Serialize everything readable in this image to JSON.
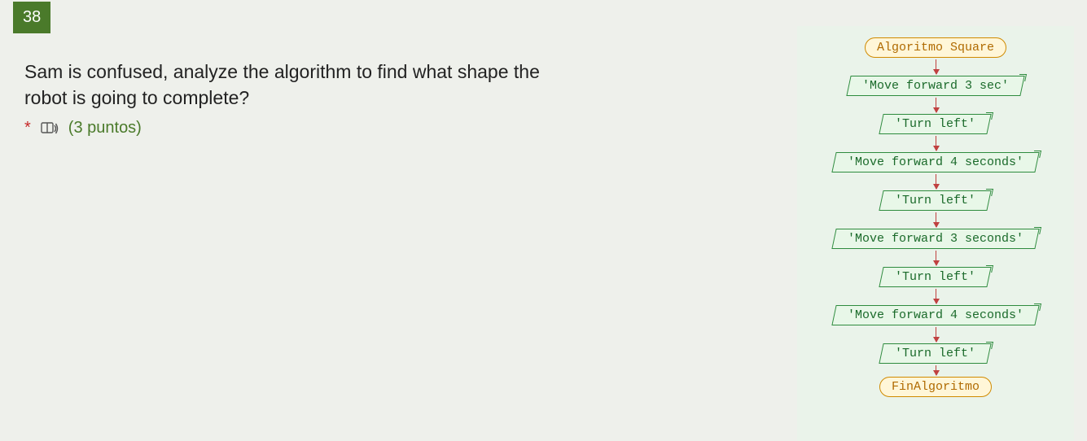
{
  "question": {
    "number": "38",
    "text": "Sam is confused, analyze the algorithm to find what shape the robot is going to complete?",
    "required_marker": "*",
    "points_label": "(3 puntos)",
    "points_color": "#4a7a2a",
    "number_bg": "#4a7a2a",
    "asterisk_color": "#c62828"
  },
  "flowchart": {
    "type": "flowchart",
    "panel_bg": "#eaf3ea",
    "terminal_style": {
      "border": "#d08a00",
      "fill": "#fff6d8",
      "text": "#b06a00"
    },
    "io_style": {
      "border": "#2e8b3e",
      "fill": "#e8f7e8",
      "text": "#1a6a2a"
    },
    "arrow_color": "#c04040",
    "font_family": "Courier New",
    "font_size": 15,
    "nodes": [
      {
        "kind": "terminal",
        "label": "Algoritmo Square"
      },
      {
        "kind": "io",
        "label": "'Move forward 3 sec'"
      },
      {
        "kind": "io",
        "label": "'Turn left'"
      },
      {
        "kind": "io",
        "label": "'Move forward 4 seconds'"
      },
      {
        "kind": "io",
        "label": "'Turn left'"
      },
      {
        "kind": "io",
        "label": "'Move forward 3 seconds'"
      },
      {
        "kind": "io",
        "label": "'Turn left'"
      },
      {
        "kind": "io",
        "label": "'Move forward 4 seconds'"
      },
      {
        "kind": "io",
        "label": "'Turn left'"
      },
      {
        "kind": "terminal",
        "label": "FinAlgoritmo"
      }
    ]
  }
}
